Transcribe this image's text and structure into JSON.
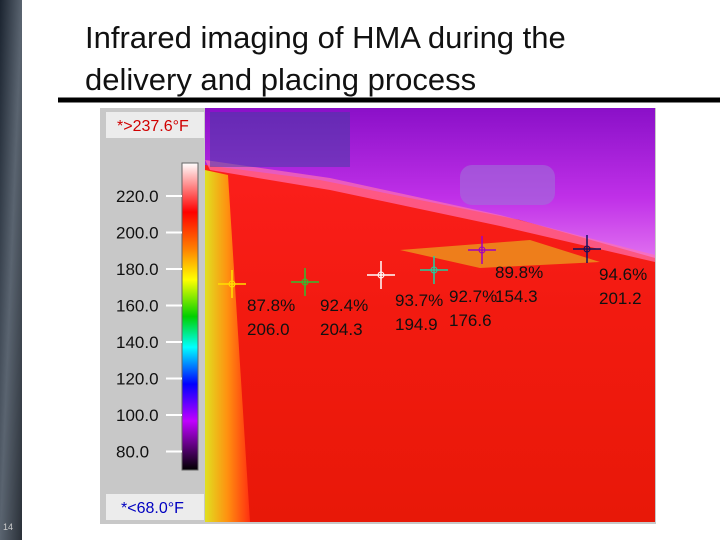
{
  "title_lines": [
    "Infrared imaging of HMA during the",
    "delivery and placing process"
  ],
  "slide_number": "14",
  "thermal_image": {
    "max_label": "*>237.6°F",
    "min_label": "*<68.0°F",
    "scale_ticks": [
      "220.0",
      "200.0",
      "180.0",
      "160.0",
      "140.0",
      "120.0",
      "100.0",
      "80.0"
    ],
    "markers": [
      {
        "percent": "87.8%",
        "temperature": "206.0"
      },
      {
        "percent": "92.4%",
        "temperature": "204.3"
      },
      {
        "percent": "93.7%",
        "temperature": "194.9"
      },
      {
        "percent": "92.7%",
        "temperature": "176.6"
      },
      {
        "percent": "89.8%",
        "temperature": "154.3"
      },
      {
        "percent": "94.6%",
        "temperature": "201.2"
      }
    ]
  }
}
